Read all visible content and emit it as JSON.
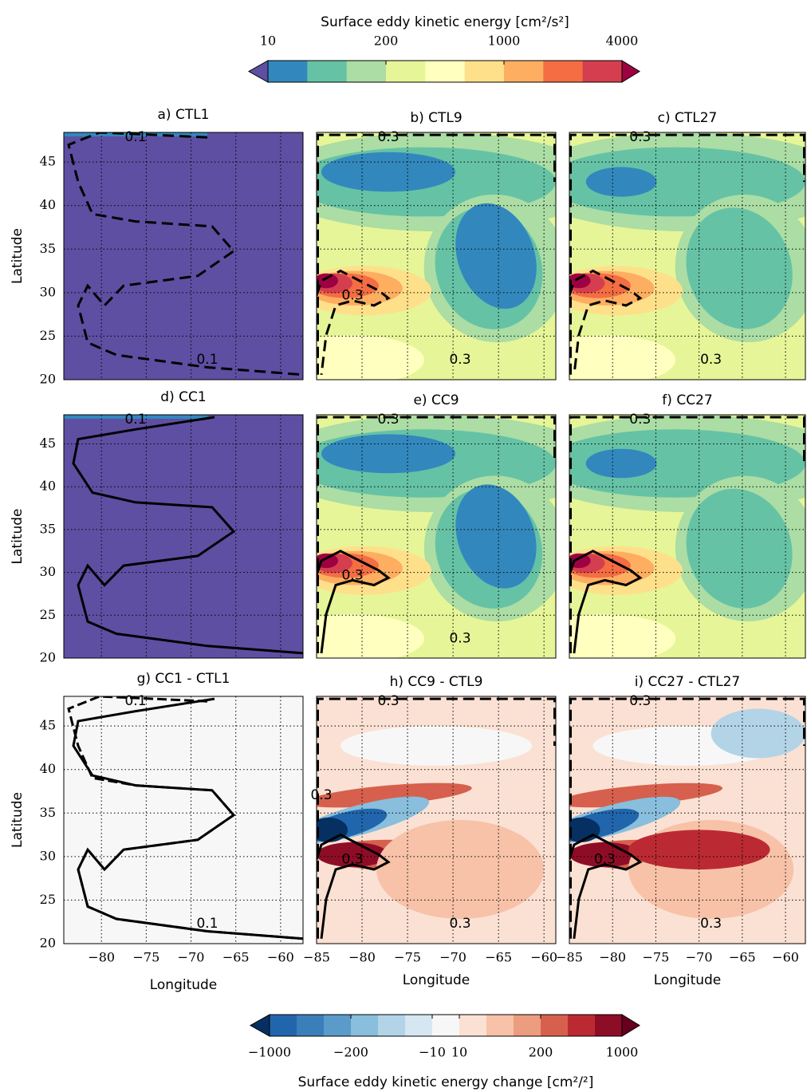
{
  "colorbars": [
    {
      "title": "Surface eddy kinetic energy [cm²/s²]",
      "levels": [
        10,
        50,
        100,
        200,
        400,
        600,
        1000,
        2000,
        3000,
        4000
      ],
      "ticks": [
        10,
        200,
        1000,
        4000
      ],
      "colors": [
        "#3288bd",
        "#66c2a5",
        "#abdda4",
        "#e6f598",
        "#ffffbf",
        "#fee08b",
        "#fdae61",
        "#f46d43",
        "#d53e4f"
      ],
      "under": "#5e4fa2",
      "over": "#9e0142"
    },
    {
      "title": "Surface eddy kinetic energy change [cm²/²]",
      "levels": [
        -1000,
        -600,
        -400,
        -200,
        -100,
        -50,
        -10,
        10,
        50,
        100,
        200,
        400,
        600,
        1000
      ],
      "ticks": [
        -1000,
        -200,
        -10,
        10,
        200,
        1000
      ],
      "colors": [
        "#2166ac",
        "#3a7fb9",
        "#5a9bc9",
        "#89bedc",
        "#b3d4e7",
        "#d6e7f1",
        "#f7f7f7",
        "#fbe1d3",
        "#f7c2a8",
        "#ec9d7f",
        "#d6604d",
        "#bb2a33",
        "#8e0d26"
      ],
      "under": "#053061",
      "over": "#67001f"
    }
  ],
  "chart_data": [
    {
      "type": "contour",
      "title": "a) CTL1",
      "y_label": "Latitude",
      "xlim": [
        -84.2,
        -57.5
      ],
      "ylim": [
        20,
        48.4
      ],
      "xticks": [
        -80,
        -75,
        -70,
        -65,
        -60
      ],
      "yticks": [
        20,
        25,
        30,
        35,
        40,
        45
      ],
      "contour_labels": [
        "0.1",
        "0.1"
      ]
    },
    {
      "type": "contour",
      "title": "b) CTL9",
      "xlim": [
        -85,
        -58.7
      ],
      "ylim": [
        20,
        48.4
      ],
      "xticks": [
        -85,
        -80,
        -75,
        -70,
        -65,
        -60
      ],
      "yticks": [
        20,
        25,
        30,
        35,
        40,
        45
      ],
      "contour_labels": [
        "0.3",
        "0.3",
        "0.3"
      ]
    },
    {
      "type": "contour",
      "title": "c) CTL27",
      "xlim": [
        -85,
        -57.7
      ],
      "ylim": [
        20,
        48.4
      ],
      "xticks": [
        -85,
        -80,
        -75,
        -70,
        -65,
        -60
      ],
      "yticks": [
        20,
        25,
        30,
        35,
        40,
        45
      ],
      "contour_labels": [
        "0.3",
        "0.3"
      ]
    },
    {
      "type": "contour",
      "title": "d) CC1",
      "y_label": "Latitude",
      "xlim": [
        -84.2,
        -57.5
      ],
      "ylim": [
        20,
        48.4
      ],
      "xticks": [
        -80,
        -75,
        -70,
        -65,
        -60
      ],
      "yticks": [
        20,
        25,
        30,
        35,
        40,
        45
      ],
      "contour_labels": [
        "0.1"
      ]
    },
    {
      "type": "contour",
      "title": "e) CC9",
      "xlim": [
        -85,
        -58.7
      ],
      "ylim": [
        20,
        48.4
      ],
      "xticks": [
        -85,
        -80,
        -75,
        -70,
        -65,
        -60
      ],
      "yticks": [
        20,
        25,
        30,
        35,
        40,
        45
      ],
      "contour_labels": [
        "0.3",
        "0.3",
        "0.3"
      ]
    },
    {
      "type": "contour",
      "title": "f) CC27",
      "xlim": [
        -85,
        -57.7
      ],
      "ylim": [
        20,
        48.4
      ],
      "xticks": [
        -85,
        -80,
        -75,
        -70,
        -65,
        -60
      ],
      "yticks": [
        20,
        25,
        30,
        35,
        40,
        45
      ],
      "contour_labels": [
        "0.3"
      ]
    },
    {
      "type": "contour",
      "title": "g) CC1 - CTL1",
      "y_label": "Latitude",
      "x_label": "Longitude",
      "xlim": [
        -84.2,
        -57.5
      ],
      "ylim": [
        20,
        48.4
      ],
      "xticks": [
        -80,
        -75,
        -70,
        -65,
        -60
      ],
      "yticks": [
        20,
        25,
        30,
        35,
        40,
        45
      ],
      "contour_labels": [
        "0.1",
        "0.1"
      ]
    },
    {
      "type": "contour",
      "title": "h) CC9 - CTL9",
      "x_label": "Longitude",
      "xlim": [
        -85,
        -58.7
      ],
      "ylim": [
        20,
        48.4
      ],
      "xticks": [
        -85,
        -80,
        -75,
        -70,
        -65,
        -60
      ],
      "yticks": [
        20,
        25,
        30,
        35,
        40,
        45
      ],
      "contour_labels": [
        "0.3",
        "0.3",
        "0.3",
        "0.3"
      ]
    },
    {
      "type": "contour",
      "title": "i) CC27 - CTL27",
      "x_label": "Longitude",
      "xlim": [
        -85,
        -57.7
      ],
      "ylim": [
        20,
        48.4
      ],
      "xticks": [
        -85,
        -80,
        -75,
        -70,
        -65,
        -60
      ],
      "yticks": [
        20,
        25,
        30,
        35,
        40,
        45
      ],
      "contour_labels": [
        "0.3",
        "0.3",
        "0.3"
      ]
    }
  ]
}
